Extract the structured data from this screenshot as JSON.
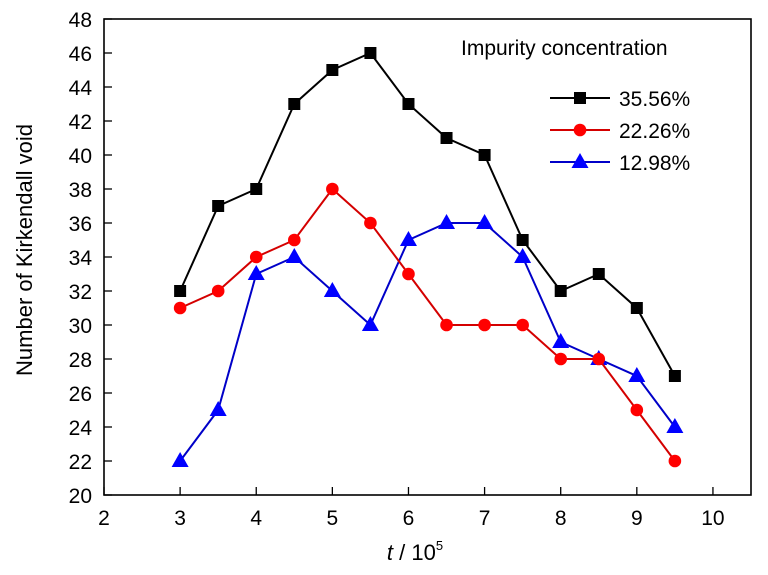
{
  "chart_data": {
    "type": "line",
    "title": "",
    "xlabel": "t / 10^5",
    "xlabel_parts": {
      "var": "t",
      "sep": " / 10",
      "exp": "5"
    },
    "ylabel": "Number of Kirkendall void",
    "xlim": [
      2,
      10.5
    ],
    "ylim": [
      20,
      48
    ],
    "xticks": [
      2,
      3,
      4,
      5,
      6,
      7,
      8,
      9,
      10
    ],
    "yticks": [
      20,
      22,
      24,
      26,
      28,
      30,
      32,
      34,
      36,
      38,
      40,
      42,
      44,
      46,
      48
    ],
    "grid": false,
    "legend_title": "Impurity concentration",
    "legend_position": "top-right",
    "x": [
      3,
      3.5,
      4,
      4.5,
      5,
      5.5,
      6,
      6.5,
      7,
      7.5,
      8,
      8.5,
      9,
      9.5
    ],
    "series": [
      {
        "name": "35.56%",
        "color": "#000000",
        "marker": "square",
        "values": [
          32,
          37,
          38,
          43,
          45,
          46,
          43,
          41,
          40,
          35,
          32,
          33,
          31,
          27
        ]
      },
      {
        "name": "22.26%",
        "color": "#ff0000",
        "line_color": "#d40000",
        "marker": "circle",
        "values": [
          31,
          32,
          34,
          35,
          38,
          36,
          33,
          30,
          30,
          30,
          28,
          28,
          25,
          22
        ]
      },
      {
        "name": "12.98%",
        "color": "#0000ff",
        "line_color": "#0000c8",
        "marker": "triangle",
        "values": [
          22,
          25,
          33,
          34,
          32,
          30,
          35,
          36,
          36,
          34,
          29,
          28,
          27,
          24
        ]
      }
    ]
  }
}
